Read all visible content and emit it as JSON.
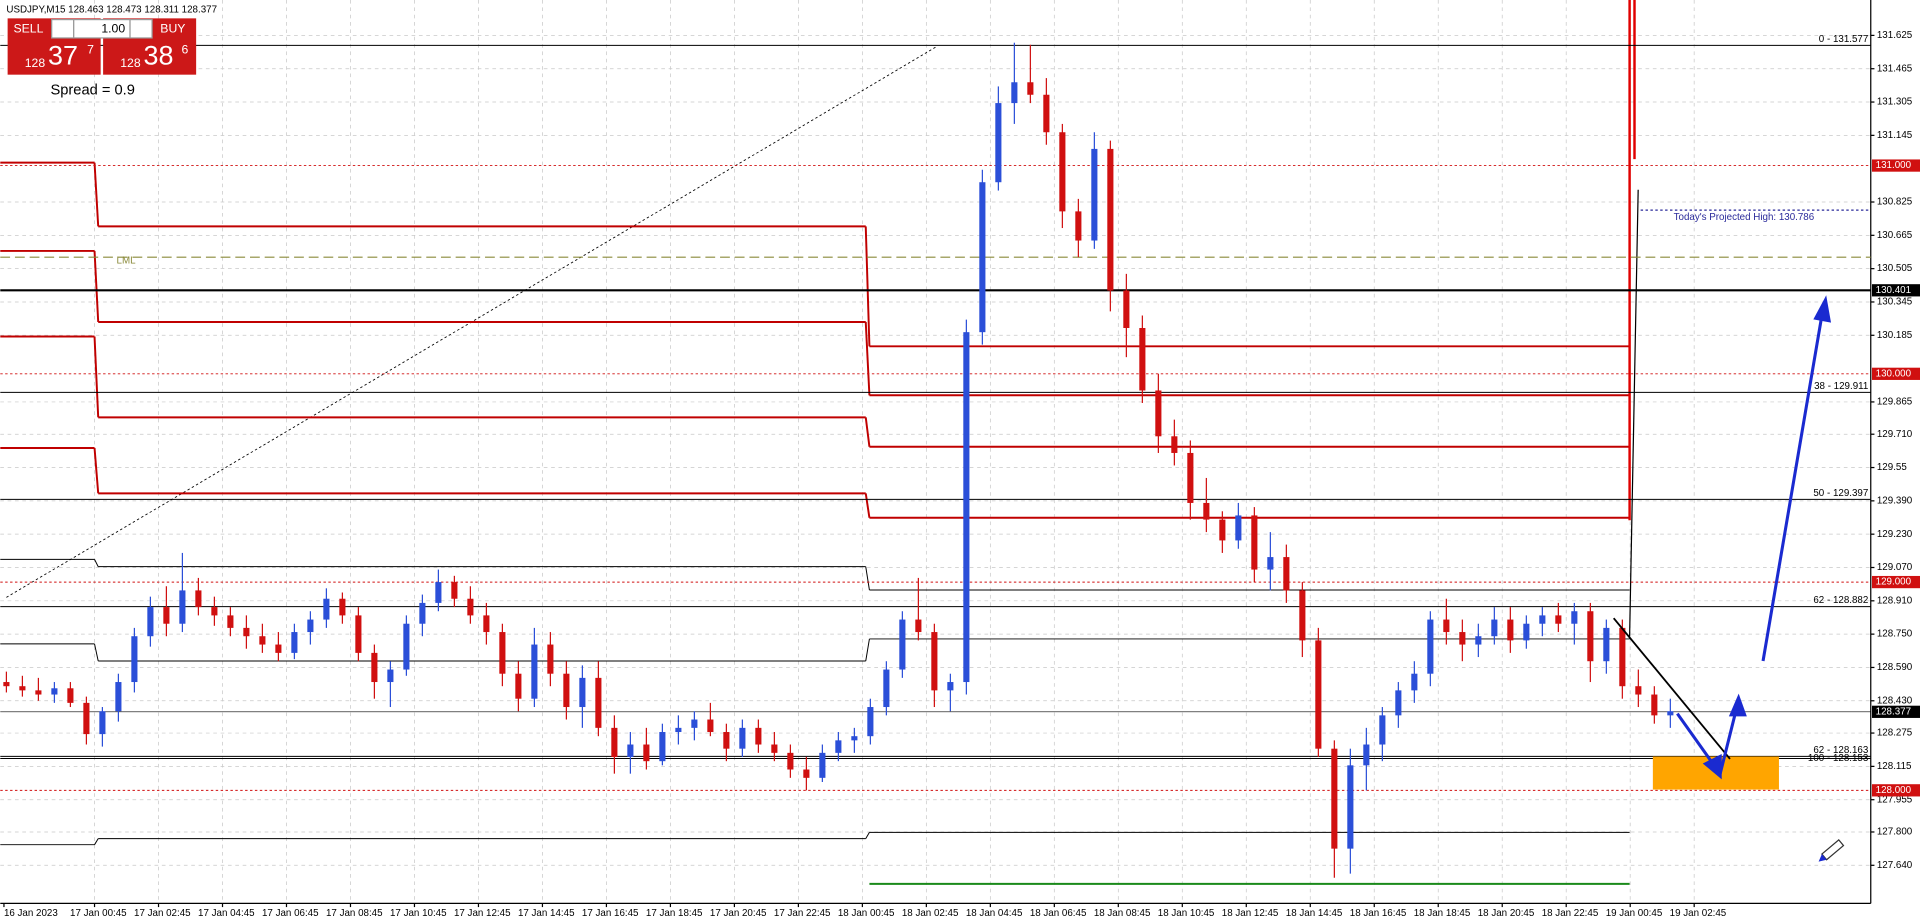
{
  "chart_data": {
    "type": "candlestick",
    "title": "USDJPY,M15  128.463 128.473 128.311 128.377",
    "up_color": "#2b4fd8",
    "down_color": "#d01010",
    "grid": true,
    "ylim": [
      127.457,
      131.795
    ],
    "yticks": [
      131.625,
      131.465,
      131.305,
      131.145,
      130.825,
      130.665,
      130.505,
      130.345,
      130.185,
      129.865,
      {
        "value": 129.71,
        "label": "129.710"
      },
      129.55,
      {
        "value": 129.39,
        "label": "129.390"
      },
      {
        "value": 129.23,
        "label": "129.230"
      },
      {
        "value": 129.07,
        "label": "129.070"
      },
      {
        "value": 128.91,
        "label": "128.910"
      },
      {
        "value": 128.75,
        "label": "128.750"
      },
      {
        "value": 128.59,
        "label": "128.590"
      },
      {
        "value": 128.43,
        "label": "128.430"
      },
      128.275,
      128.115,
      127.955,
      {
        "value": 127.8,
        "label": "127.800"
      },
      {
        "value": 127.64,
        "label": "127.640"
      }
    ],
    "x_labels": [
      "16 Jan 2023",
      "17 Jan 00:45",
      "17 Jan 02:45",
      "17 Jan 04:45",
      "17 Jan 06:45",
      "17 Jan 08:45",
      "17 Jan 10:45",
      "17 Jan 12:45",
      "17 Jan 14:45",
      "17 Jan 16:45",
      "17 Jan 18:45",
      "17 Jan 20:45",
      "17 Jan 22:45",
      "18 Jan 00:45",
      "18 Jan 02:45",
      "18 Jan 04:45",
      "18 Jan 06:45",
      "18 Jan 08:45",
      "18 Jan 10:45",
      "18 Jan 12:45",
      "18 Jan 14:45",
      "18 Jan 16:45",
      "18 Jan 18:45",
      "18 Jan 20:45",
      "18 Jan 22:45",
      "19 Jan 00:45",
      "19 Jan 02:45"
    ],
    "ohlc": [
      [
        128.52,
        128.57,
        128.47,
        128.5
      ],
      [
        128.5,
        128.55,
        128.45,
        128.48
      ],
      [
        128.48,
        128.54,
        128.43,
        128.46
      ],
      [
        128.46,
        128.52,
        128.42,
        128.49
      ],
      [
        128.49,
        128.52,
        128.4,
        128.42
      ],
      [
        128.42,
        128.45,
        128.22,
        128.27
      ],
      [
        128.27,
        128.4,
        128.21,
        128.38
      ],
      [
        128.38,
        128.56,
        128.33,
        128.52
      ],
      [
        128.52,
        128.78,
        128.47,
        128.74
      ],
      [
        128.74,
        128.93,
        128.69,
        128.88
      ],
      [
        128.88,
        128.98,
        128.74,
        128.8
      ],
      [
        128.8,
        129.14,
        128.76,
        128.96
      ],
      [
        128.96,
        129.02,
        128.84,
        128.88
      ],
      [
        128.88,
        128.93,
        128.79,
        128.84
      ],
      [
        128.84,
        128.88,
        128.74,
        128.78
      ],
      [
        128.78,
        128.84,
        128.68,
        128.74
      ],
      [
        128.74,
        128.8,
        128.66,
        128.7
      ],
      [
        128.7,
        128.76,
        128.62,
        128.66
      ],
      [
        128.66,
        128.8,
        128.63,
        128.76
      ],
      [
        128.76,
        128.86,
        128.7,
        128.82
      ],
      [
        128.82,
        128.97,
        128.78,
        128.92
      ],
      [
        128.92,
        128.95,
        128.8,
        128.84
      ],
      [
        128.84,
        128.88,
        128.62,
        128.66
      ],
      [
        128.66,
        128.7,
        128.44,
        128.52
      ],
      [
        128.52,
        128.62,
        128.4,
        128.58
      ],
      [
        128.58,
        128.84,
        128.55,
        128.8
      ],
      [
        128.8,
        128.94,
        128.74,
        128.9
      ],
      [
        128.9,
        129.06,
        128.86,
        129.0
      ],
      [
        129.0,
        129.03,
        128.88,
        128.92
      ],
      [
        128.92,
        128.98,
        128.8,
        128.84
      ],
      [
        128.84,
        128.9,
        128.7,
        128.76
      ],
      [
        128.76,
        128.8,
        128.5,
        128.56
      ],
      [
        128.56,
        128.62,
        128.38,
        128.44
      ],
      [
        128.44,
        128.78,
        128.4,
        128.7
      ],
      [
        128.7,
        128.76,
        128.5,
        128.56
      ],
      [
        128.56,
        128.62,
        128.34,
        128.4
      ],
      [
        128.4,
        128.6,
        128.3,
        128.54
      ],
      [
        128.54,
        128.62,
        128.26,
        128.3
      ],
      [
        128.3,
        128.36,
        128.08,
        128.16
      ],
      [
        128.16,
        128.28,
        128.08,
        128.22
      ],
      [
        128.22,
        128.3,
        128.1,
        128.14
      ],
      [
        128.14,
        128.32,
        128.12,
        128.28
      ],
      [
        128.28,
        128.36,
        128.22,
        128.3
      ],
      [
        128.3,
        128.38,
        128.24,
        128.34
      ],
      [
        128.34,
        128.42,
        128.26,
        128.28
      ],
      [
        128.28,
        128.32,
        128.14,
        128.2
      ],
      [
        128.2,
        128.34,
        128.16,
        128.3
      ],
      [
        128.3,
        128.34,
        128.18,
        128.22
      ],
      [
        128.22,
        128.28,
        128.14,
        128.18
      ],
      [
        128.18,
        128.22,
        128.06,
        128.1
      ],
      [
        128.1,
        128.16,
        128.0,
        128.06
      ],
      [
        128.06,
        128.22,
        128.04,
        128.18
      ],
      [
        128.18,
        128.28,
        128.14,
        128.24
      ],
      [
        128.24,
        128.3,
        128.18,
        128.26
      ],
      [
        128.26,
        128.44,
        128.22,
        128.4
      ],
      [
        128.4,
        128.62,
        128.36,
        128.58
      ],
      [
        128.58,
        128.86,
        128.54,
        128.82
      ],
      [
        128.82,
        129.02,
        128.72,
        128.76
      ],
      [
        128.76,
        128.8,
        128.4,
        128.48
      ],
      [
        128.48,
        128.56,
        128.38,
        128.52
      ],
      [
        128.52,
        130.26,
        128.46,
        130.2
      ],
      [
        130.2,
        130.98,
        130.14,
        130.92
      ],
      [
        130.92,
        131.38,
        130.88,
        131.3
      ],
      [
        131.3,
        131.59,
        131.2,
        131.4
      ],
      [
        131.4,
        131.58,
        131.3,
        131.34
      ],
      [
        131.34,
        131.42,
        131.1,
        131.16
      ],
      [
        131.16,
        131.2,
        130.7,
        130.78
      ],
      [
        130.78,
        130.84,
        130.56,
        130.64
      ],
      [
        130.64,
        131.16,
        130.6,
        131.08
      ],
      [
        131.08,
        131.12,
        130.3,
        130.4
      ],
      [
        130.4,
        130.48,
        130.08,
        130.22
      ],
      [
        130.22,
        130.28,
        129.86,
        129.92
      ],
      [
        129.92,
        130.0,
        129.62,
        129.7
      ],
      [
        129.7,
        129.78,
        129.56,
        129.62
      ],
      [
        129.62,
        129.68,
        129.3,
        129.38
      ],
      [
        129.38,
        129.5,
        129.24,
        129.3
      ],
      [
        129.3,
        129.34,
        129.14,
        129.2
      ],
      [
        129.2,
        129.38,
        129.16,
        129.32
      ],
      [
        129.32,
        129.36,
        129.0,
        129.06
      ],
      [
        129.06,
        129.24,
        128.96,
        129.12
      ],
      [
        129.12,
        129.18,
        128.9,
        128.96
      ],
      [
        128.96,
        129.0,
        128.64,
        128.72
      ],
      [
        128.72,
        128.78,
        128.16,
        128.2
      ],
      [
        128.2,
        128.24,
        127.58,
        127.72
      ],
      [
        127.72,
        128.2,
        127.6,
        128.12
      ],
      [
        128.12,
        128.3,
        128.0,
        128.22
      ],
      [
        128.22,
        128.4,
        128.14,
        128.36
      ],
      [
        128.36,
        128.52,
        128.3,
        128.48
      ],
      [
        128.48,
        128.62,
        128.42,
        128.56
      ],
      [
        128.56,
        128.86,
        128.5,
        128.82
      ],
      [
        128.82,
        128.92,
        128.7,
        128.76
      ],
      [
        128.76,
        128.82,
        128.62,
        128.7
      ],
      [
        128.7,
        128.8,
        128.64,
        128.74
      ],
      [
        128.74,
        128.88,
        128.7,
        128.82
      ],
      [
        128.82,
        128.88,
        128.66,
        128.72
      ],
      [
        128.72,
        128.84,
        128.68,
        128.8
      ],
      [
        128.8,
        128.88,
        128.74,
        128.84
      ],
      [
        128.84,
        128.9,
        128.76,
        128.8
      ],
      [
        128.8,
        128.9,
        128.7,
        128.86
      ],
      [
        128.86,
        128.9,
        128.52,
        128.62
      ],
      [
        128.62,
        128.82,
        128.56,
        128.78
      ],
      [
        128.78,
        128.82,
        128.44,
        128.5
      ],
      [
        128.5,
        128.58,
        128.4,
        128.46
      ],
      [
        128.46,
        128.5,
        128.32,
        128.36
      ],
      [
        128.36,
        128.44,
        128.3,
        128.38
      ]
    ],
    "steps": [
      {
        "color": "#c00000",
        "values": [
          131.014,
          130.708,
          130.132
        ]
      },
      {
        "color": "#c00000",
        "values": [
          130.59,
          130.249,
          129.897
        ]
      },
      {
        "color": "#c00000",
        "values": [
          130.179,
          129.791,
          129.65
        ]
      },
      {
        "color": "#c00000",
        "values": [
          129.644,
          129.426,
          129.309
        ]
      },
      {
        "color": "#000000",
        "values": [
          129.109,
          129.074,
          128.962
        ]
      },
      {
        "color": "#000000",
        "values": [
          128.703,
          128.621,
          128.727
        ]
      },
      {
        "color": "#000000",
        "values": [
          127.739,
          127.768,
          127.798
        ]
      },
      {
        "color": "#1a8a1a",
        "values": [
          null,
          null,
          127.551
        ]
      }
    ],
    "levels": [
      {
        "value": 131.577,
        "label": "0 - 131.577",
        "color": "#000000"
      },
      {
        "value": 129.911,
        "label": "38 - 129.911",
        "color": "#000000"
      },
      {
        "value": 129.397,
        "label": "50 - 129.397",
        "color": "#000000"
      },
      {
        "value": 128.882,
        "label": "62 - 128.882",
        "color": "#000000"
      },
      {
        "value": 128.163,
        "label": "62 - 128.163",
        "color": "#000000"
      },
      {
        "value": 128.153,
        "label": "100 - 128.153",
        "color": "#000000"
      }
    ],
    "price_marks": [
      {
        "value": 131,
        "label": "131.000",
        "color": "#d01010"
      },
      {
        "value": 130.401,
        "label": "130.401",
        "color": "#000000"
      },
      {
        "value": 130,
        "label": "130.000",
        "color": "#d01010"
      },
      {
        "value": 129,
        "label": "129.000",
        "color": "#d01010"
      },
      {
        "value": 128.377,
        "label": "128.377",
        "color": "#000000"
      },
      {
        "value": 128,
        "label": "128.000",
        "color": "#d01010"
      }
    ],
    "lml": {
      "value": 130.56,
      "label": "LML",
      "color": "#8a8a3a"
    },
    "projected_high": {
      "value": 130.786,
      "label": "Today's Projected High: 130.786",
      "color": "#2a2a9a"
    }
  },
  "widget": {
    "sell": "SELL",
    "buy": "BUY",
    "lots": "1.00",
    "sell_big": "128",
    "sell_pips": "37",
    "sell_frac": "7",
    "buy_big": "128",
    "buy_pips": "38",
    "buy_frac": "6",
    "spread": "Spread = 0.9"
  }
}
